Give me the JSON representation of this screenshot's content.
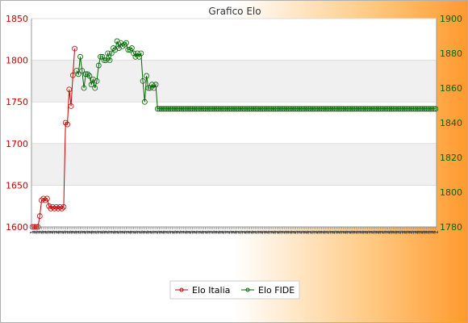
{
  "chart_data": {
    "type": "line",
    "title": "Grafico Elo",
    "y_left": {
      "min": 1600,
      "max": 1850,
      "ticks": [
        1600,
        1650,
        1700,
        1750,
        1800,
        1850
      ]
    },
    "y_right": {
      "min": 1780,
      "max": 1900,
      "ticks": [
        1780,
        1800,
        1820,
        1840,
        1860,
        1880,
        1900
      ]
    },
    "x_label_samples": [
      "1",
      "2",
      "3"
    ],
    "grid": true,
    "legend_position": "bottom",
    "series": [
      {
        "name": "Elo Italia",
        "color": "#cc0000",
        "axis": "left",
        "values": [
          1600,
          1600,
          1600,
          1600,
          1613,
          1632,
          1634,
          1632,
          1634,
          1625,
          1622,
          1624,
          1622,
          1624,
          1622,
          1624,
          1622,
          1624,
          1725,
          1723,
          1765,
          1745,
          1782,
          1814
        ]
      },
      {
        "name": "Elo FIDE",
        "color": "#006600",
        "axis": "right",
        "start_index": 24,
        "values": [
          1870,
          1868,
          1878,
          1870,
          1860,
          1868,
          1868,
          1867,
          1862,
          1865,
          1860,
          1864,
          1873,
          1878,
          1878,
          1876,
          1876,
          1880,
          1876,
          1880,
          1883,
          1882,
          1887,
          1883,
          1886,
          1884,
          1885,
          1886,
          1882,
          1882,
          1883,
          1880,
          1878,
          1880,
          1878,
          1880,
          1864,
          1852,
          1867,
          1860,
          1860,
          1862,
          1860,
          1862,
          1848,
          1848,
          1848,
          1848,
          1848,
          1848,
          1848,
          1848,
          1848,
          1848,
          1848,
          1848,
          1848,
          1848,
          1848,
          1848,
          1848,
          1848,
          1848,
          1848,
          1848,
          1848,
          1848,
          1848,
          1848,
          1848,
          1848,
          1848,
          1848,
          1848,
          1848,
          1848,
          1848,
          1848,
          1848,
          1848,
          1848,
          1848,
          1848,
          1848,
          1848,
          1848,
          1848,
          1848,
          1848,
          1848,
          1848,
          1848,
          1848,
          1848,
          1848,
          1848,
          1848,
          1848,
          1848,
          1848,
          1848,
          1848,
          1848,
          1848,
          1848,
          1848,
          1848,
          1848,
          1848,
          1848,
          1848,
          1848,
          1848,
          1848,
          1848,
          1848,
          1848,
          1848,
          1848,
          1848,
          1848,
          1848,
          1848,
          1848,
          1848,
          1848,
          1848,
          1848,
          1848,
          1848,
          1848,
          1848,
          1848,
          1848,
          1848,
          1848,
          1848,
          1848,
          1848,
          1848,
          1848,
          1848,
          1848,
          1848,
          1848,
          1848,
          1848,
          1848,
          1848,
          1848,
          1848,
          1848,
          1848,
          1848,
          1848,
          1848,
          1848,
          1848,
          1848,
          1848,
          1848,
          1848,
          1848,
          1848,
          1848,
          1848,
          1848,
          1848,
          1848,
          1848,
          1848,
          1848,
          1848,
          1848,
          1848,
          1848,
          1848,
          1848,
          1848,
          1848,
          1848,
          1848,
          1848,
          1848,
          1848,
          1848,
          1848,
          1848,
          1848,
          1848,
          1848,
          1848,
          1848,
          1848,
          1848,
          1848
        ]
      }
    ]
  }
}
